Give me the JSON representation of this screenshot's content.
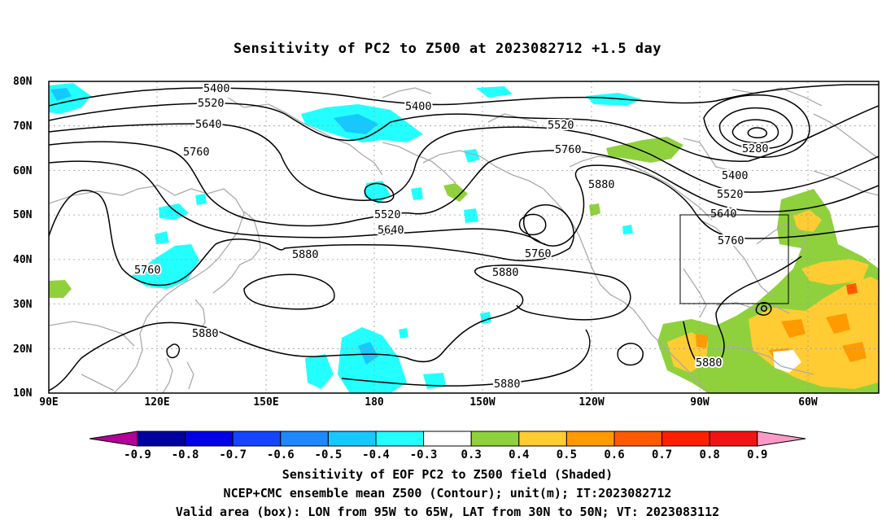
{
  "title": "Sensitivity of PC2 to Z500 at 2023082712 +1.5 day",
  "lat_labels": [
    "80N",
    "70N",
    "60N",
    "50N",
    "40N",
    "30N",
    "20N",
    "10N"
  ],
  "lon_labels": [
    "90E",
    "120E",
    "150E",
    "180",
    "150W",
    "120W",
    "90W",
    "60W"
  ],
  "contour_labels": [
    "5400",
    "5520",
    "5640",
    "5760",
    "5400",
    "5520",
    "5760",
    "5880",
    "5280",
    "5400",
    "5520",
    "5640",
    "5760",
    "5520",
    "5640",
    "5760",
    "5880",
    "5880",
    "5880",
    "5880",
    "5880"
  ],
  "colorbar": {
    "labels": [
      "-0.9",
      "-0.8",
      "-0.7",
      "-0.6",
      "-0.5",
      "-0.4",
      "-0.3",
      "0.3",
      "0.4",
      "0.5",
      "0.6",
      "0.7",
      "0.8",
      "0.9"
    ],
    "colors": [
      "#b40097",
      "#00009e",
      "#0000e6",
      "#1645ff",
      "#1f88ff",
      "#17c8ff",
      "#23ffff",
      "#ffffff",
      "#8fd13c",
      "#ffcc33",
      "#ff9a00",
      "#ff5a00",
      "#ff2000",
      "#f01414",
      "#ff9ac8"
    ]
  },
  "valid_box": "LON from 95W to 65W, LAT from 30N to 50N",
  "captions": [
    "Sensitivity of EOF PC2 to Z500 field (Shaded)",
    "NCEP+CMC ensemble mean Z500 (Contour); unit(m); IT:2023082712",
    "Valid area (box): LON from 95W to 65W, LAT from 30N to 50N; VT: 2023083112"
  ]
}
